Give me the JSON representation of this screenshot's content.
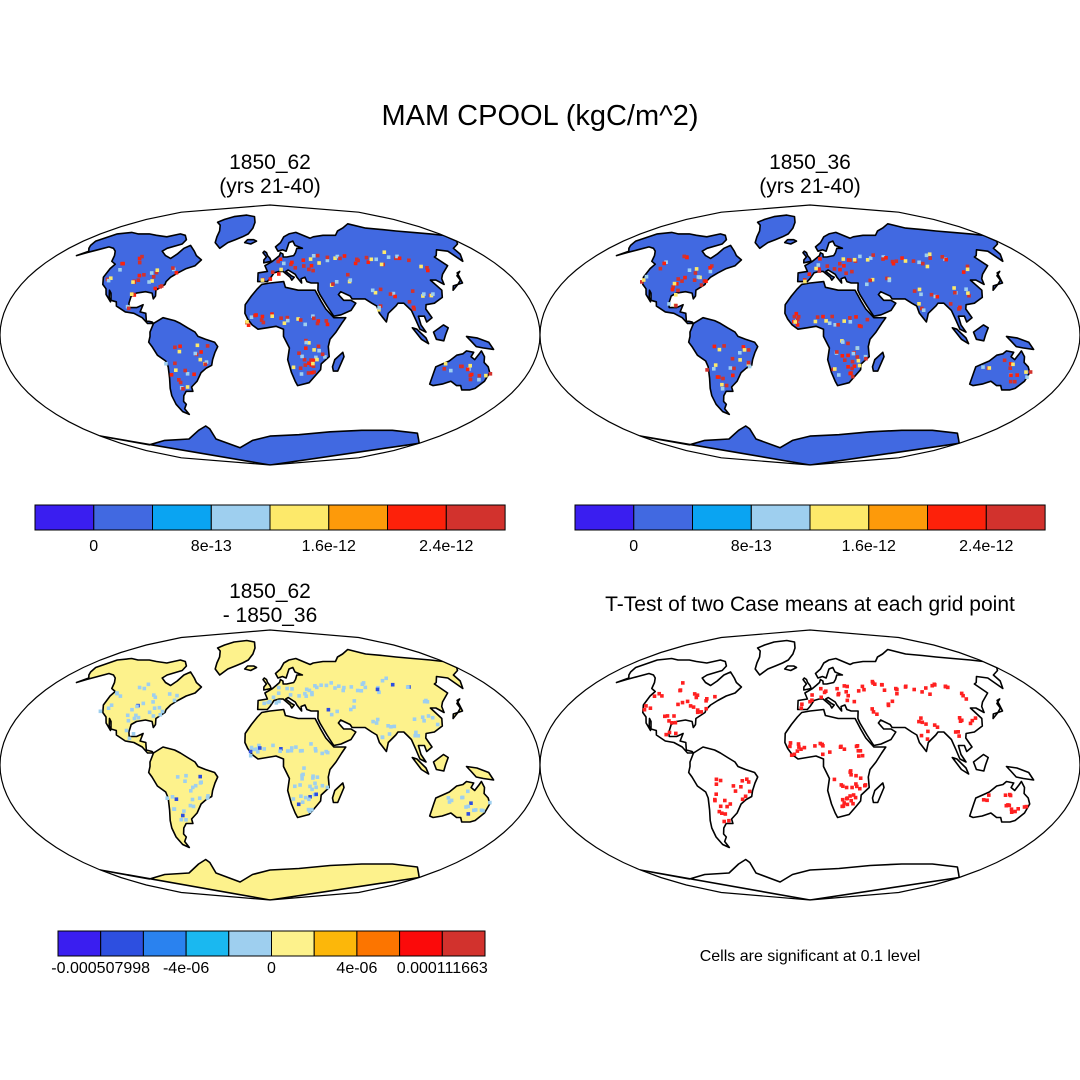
{
  "figure": {
    "title": "MAM CPOOL (kgC/m^2)",
    "panels": [
      {
        "id": "case1",
        "title_line1": "1850_62",
        "title_line2": "(yrs 21-40)",
        "fill": "#4169e1"
      },
      {
        "id": "case2",
        "title_line1": "1850_36",
        "title_line2": "(yrs 21-40)",
        "fill": "#4169e1"
      },
      {
        "id": "diff",
        "title_line1": "1850_62",
        "title_line2": "- 1850_36",
        "fill": "#fdf28c"
      },
      {
        "id": "ttest",
        "title_line1": "T-Test of two Case means at each grid point",
        "title_line2": "",
        "fill": "#ffffff"
      }
    ],
    "colorbars": [
      {
        "id": "cb-case1",
        "colors": [
          "#3a1ef0",
          "#4169e1",
          "#0aa4f2",
          "#9ecfef",
          "#fde96a",
          "#fd9a0a",
          "#fd210a",
          "#d2322d"
        ],
        "labels": [
          "0",
          "8e-13",
          "1.6e-12",
          "2.4e-12"
        ]
      },
      {
        "id": "cb-case2",
        "colors": [
          "#3a1ef0",
          "#4169e1",
          "#0aa4f2",
          "#9ecfef",
          "#fde96a",
          "#fd9a0a",
          "#fd210a",
          "#d2322d"
        ],
        "labels": [
          "0",
          "8e-13",
          "1.6e-12",
          "2.4e-12"
        ]
      },
      {
        "id": "cb-diff",
        "colors": [
          "#3a1ef0",
          "#2d4fe0",
          "#2a82ef",
          "#1ab8f0",
          "#9ecfef",
          "#fdf28c",
          "#fcb70a",
          "#fc7500",
          "#fb0a0a",
          "#d2322d"
        ],
        "labels": [
          "-0.000507998",
          "-4e-06",
          "0",
          "4e-06",
          "0.000111663"
        ]
      }
    ],
    "significance_note": "Cells are significant at 0.1 level"
  }
}
